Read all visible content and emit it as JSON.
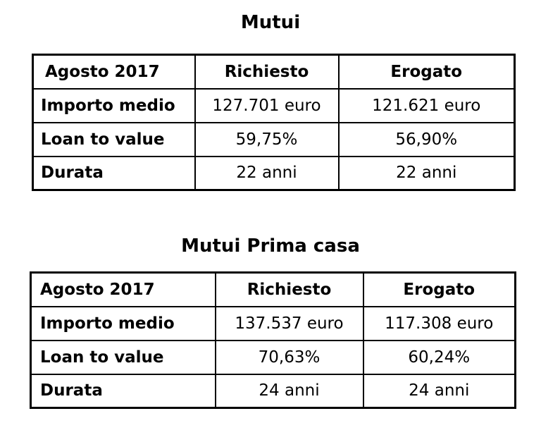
{
  "tables": [
    {
      "title": "Mutui",
      "header": [
        "Agosto 2017",
        "Richiesto",
        "Erogato"
      ],
      "rows": [
        {
          "label": "Importo medio",
          "richiesto": "127.701 euro",
          "erogato": "121.621 euro"
        },
        {
          "label": "Loan to value",
          "richiesto": "59,75%",
          "erogato": "56,90%"
        },
        {
          "label": "Durata",
          "richiesto": "22 anni",
          "erogato": "22 anni"
        }
      ]
    },
    {
      "title": "Mutui Prima casa",
      "header": [
        "Agosto 2017",
        "Richiesto",
        "Erogato"
      ],
      "rows": [
        {
          "label": "Importo medio",
          "richiesto": "137.537 euro",
          "erogato": "117.308 euro"
        },
        {
          "label": "Loan to value",
          "richiesto": "70,63%",
          "erogato": "60,24%"
        },
        {
          "label": "Durata",
          "richiesto": "24 anni",
          "erogato": "24 anni"
        }
      ]
    }
  ]
}
